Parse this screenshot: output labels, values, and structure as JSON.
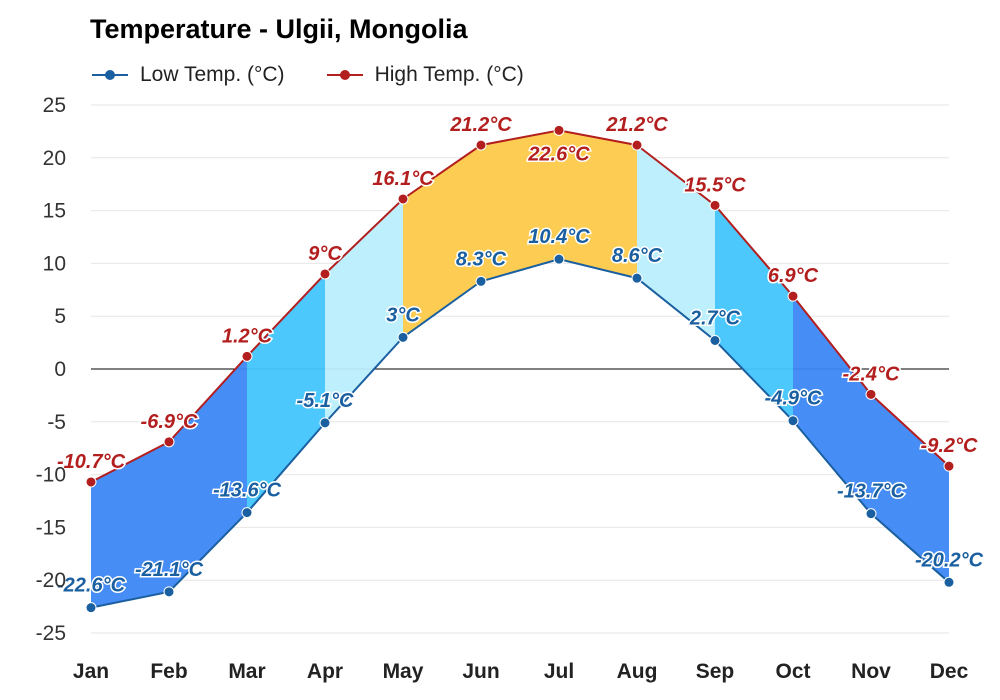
{
  "title": "Temperature - Ulgii, Mongolia",
  "legend": {
    "low": "Low Temp. (°C)",
    "high": "High Temp. (°C)"
  },
  "colors": {
    "low": "#1a5fa0",
    "high": "#b31e1e",
    "band_very_cold": "#3d87f5",
    "band_cold": "#42c5fd",
    "band_cool": "#bbeefd",
    "band_warm": "#fdca4a",
    "zero_line": "#000000",
    "grid": "#e6e6e6"
  },
  "chart_data": {
    "type": "line",
    "categories": [
      "Jan",
      "Feb",
      "Mar",
      "Apr",
      "May",
      "Jun",
      "Jul",
      "Aug",
      "Sep",
      "Oct",
      "Nov",
      "Dec"
    ],
    "series": [
      {
        "name": "Low Temp. (°C)",
        "values": [
          -22.6,
          -21.1,
          -13.6,
          -5.1,
          3,
          8.3,
          10.4,
          8.6,
          2.7,
          -4.9,
          -13.7,
          -20.2
        ],
        "labels": [
          "-22.6°C",
          "-21.1°C",
          "-13.6°C",
          "-5.1°C",
          "3°C",
          "8.3°C",
          "10.4°C",
          "8.6°C",
          "2.7°C",
          "-4.9°C",
          "-13.7°C",
          "-20.2°C"
        ]
      },
      {
        "name": "High Temp. (°C)",
        "values": [
          -10.7,
          -6.9,
          1.2,
          9,
          16.1,
          21.2,
          22.6,
          21.2,
          15.5,
          6.9,
          -2.4,
          -9.2
        ],
        "labels": [
          "-10.7°C",
          "-6.9°C",
          "1.2°C",
          "9°C",
          "16.1°C",
          "21.2°C",
          "22.6°C",
          "21.2°C",
          "15.5°C",
          "6.9°C",
          "-2.4°C",
          "-9.2°C"
        ]
      }
    ],
    "band_categories": [
      "very_cold",
      "very_cold",
      "cold",
      "cool",
      "warm",
      "warm",
      "warm",
      "cool",
      "cold",
      "very_cold",
      "very_cold"
    ],
    "ylim": [
      -25,
      25
    ],
    "yticks": [
      25,
      20,
      15,
      10,
      5,
      0,
      -5,
      -10,
      -15,
      -20,
      -25
    ],
    "ytick_labels": [
      "25",
      "20",
      "15",
      "10",
      "5",
      "0",
      "-5",
      "-10",
      "-15",
      "-20",
      "-25"
    ],
    "grid": true,
    "legend_position": "top-left"
  }
}
